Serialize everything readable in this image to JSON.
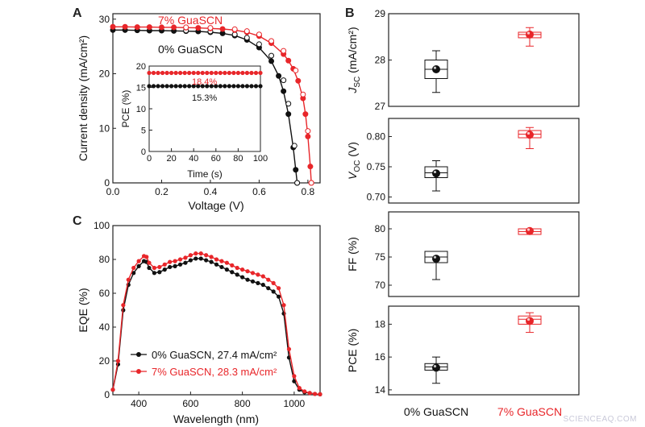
{
  "panel_labels": {
    "a": "A",
    "b": "B",
    "c": "C"
  },
  "watermark": "SCIENCEAQ.COM",
  "colors": {
    "control": "#111111",
    "gua": "#e8262a"
  },
  "chart_data": [
    {
      "id": "A",
      "type": "line",
      "xlabel": "Voltage (V)",
      "ylabel": "Current density (mA/cm²)",
      "xlim": [
        0,
        0.85
      ],
      "ylim": [
        0,
        31
      ],
      "xticks": [
        "0.0",
        "0.2",
        "0.4",
        "0.6",
        "0.8"
      ],
      "yticks": [
        "0",
        "10",
        "20",
        "30"
      ],
      "series": [
        {
          "name": "0% GuaSCN",
          "role": "control",
          "points": [
            [
              0,
              28
            ],
            [
              0.05,
              28
            ],
            [
              0.1,
              27.95
            ],
            [
              0.15,
              27.9
            ],
            [
              0.2,
              27.9
            ],
            [
              0.25,
              27.85
            ],
            [
              0.3,
              27.8
            ],
            [
              0.35,
              27.75
            ],
            [
              0.4,
              27.6
            ],
            [
              0.45,
              27.4
            ],
            [
              0.5,
              27
            ],
            [
              0.55,
              26.2
            ],
            [
              0.6,
              24.8
            ],
            [
              0.65,
              22.3
            ],
            [
              0.68,
              19.6
            ],
            [
              0.7,
              16.8
            ],
            [
              0.72,
              12.6
            ],
            [
              0.74,
              6.5
            ],
            [
              0.75,
              2.4
            ],
            [
              0.756,
              0
            ]
          ]
        },
        {
          "name": "0% GuaSCN (reverse)",
          "role": "control-open",
          "points": [
            [
              0.3,
              27.9
            ],
            [
              0.4,
              27.75
            ],
            [
              0.5,
              27.2
            ],
            [
              0.55,
              26.6
            ],
            [
              0.6,
              25.4
            ],
            [
              0.65,
              23.3
            ],
            [
              0.7,
              18.8
            ],
            [
              0.72,
              14.5
            ],
            [
              0.745,
              6.8
            ],
            [
              0.756,
              0
            ]
          ]
        },
        {
          "name": "7% GuaSCN",
          "role": "gua",
          "points": [
            [
              0,
              28.6
            ],
            [
              0.05,
              28.6
            ],
            [
              0.1,
              28.55
            ],
            [
              0.15,
              28.55
            ],
            [
              0.2,
              28.5
            ],
            [
              0.25,
              28.5
            ],
            [
              0.3,
              28.45
            ],
            [
              0.35,
              28.4
            ],
            [
              0.4,
              28.3
            ],
            [
              0.45,
              28.2
            ],
            [
              0.5,
              28
            ],
            [
              0.55,
              27.6
            ],
            [
              0.6,
              26.9
            ],
            [
              0.65,
              25.6
            ],
            [
              0.7,
              23.6
            ],
            [
              0.72,
              22.4
            ],
            [
              0.74,
              20.9
            ],
            [
              0.76,
              18.7
            ],
            [
              0.78,
              15.5
            ],
            [
              0.79,
              12.6
            ],
            [
              0.8,
              8.5
            ],
            [
              0.81,
              3
            ],
            [
              0.814,
              0
            ]
          ]
        },
        {
          "name": "7% GuaSCN (reverse)",
          "role": "gua-open",
          "points": [
            [
              0.3,
              28.5
            ],
            [
              0.4,
              28.4
            ],
            [
              0.5,
              28.15
            ],
            [
              0.55,
              27.8
            ],
            [
              0.6,
              27.2
            ],
            [
              0.65,
              26
            ],
            [
              0.7,
              24.2
            ],
            [
              0.75,
              20.6
            ],
            [
              0.78,
              16.2
            ],
            [
              0.8,
              9.5
            ],
            [
              0.814,
              0
            ]
          ]
        }
      ],
      "labels": {
        "gua": "7% GuaSCN",
        "control": "0% GuaSCN"
      }
    },
    {
      "id": "A-inset",
      "type": "scatter",
      "xlabel": "Time (s)",
      "ylabel": "PCE (%)",
      "xlim": [
        0,
        100
      ],
      "ylim": [
        0,
        20
      ],
      "xticks": [
        "0",
        "20",
        "40",
        "60",
        "80",
        "100"
      ],
      "yticks": [
        "0",
        "5",
        "10",
        "15",
        "20"
      ],
      "series": [
        {
          "name": "7% GuaSCN",
          "role": "gua",
          "value": 18.4
        },
        {
          "name": "0% GuaSCN",
          "role": "control",
          "value": 15.3
        }
      ],
      "annotations": [
        "18.4%",
        "15.3%"
      ]
    },
    {
      "id": "B",
      "type": "box",
      "categories": [
        "0% GuaSCN",
        "7% GuaSCN"
      ],
      "subplots": [
        {
          "ylabel_main": "J",
          "ylabel_sub": "SC",
          "ylabel_unit": " (mA/cm²)",
          "ylim": [
            27,
            29
          ],
          "yticks": [
            "27",
            "28",
            "29"
          ],
          "boxes": [
            {
              "min": 27.3,
              "q1": 27.6,
              "median": 27.8,
              "q3": 28.0,
              "max": 28.2,
              "mean": 27.8
            },
            {
              "min": 28.3,
              "q1": 28.48,
              "median": 28.55,
              "q3": 28.6,
              "max": 28.7,
              "mean": 28.55
            }
          ]
        },
        {
          "ylabel_main": "V",
          "ylabel_sub": "OC",
          "ylabel_unit": " (V)",
          "ylim": [
            0.69,
            0.83
          ],
          "yticks": [
            "0.70",
            "0.75",
            "0.80"
          ],
          "boxes": [
            {
              "min": 0.71,
              "q1": 0.732,
              "median": 0.74,
              "q3": 0.75,
              "max": 0.76,
              "mean": 0.739
            },
            {
              "min": 0.78,
              "q1": 0.798,
              "median": 0.804,
              "q3": 0.81,
              "max": 0.815,
              "mean": 0.803
            }
          ]
        },
        {
          "ylabel_main": "FF (%)",
          "ylabel_sub": "",
          "ylabel_unit": "",
          "ylim": [
            68,
            83
          ],
          "yticks": [
            "70",
            "75",
            "80"
          ],
          "boxes": [
            {
              "min": 71,
              "q1": 74,
              "median": 75,
              "q3": 76,
              "max": 76,
              "mean": 74.7
            },
            {
              "min": 79,
              "q1": 79,
              "median": 79.5,
              "q3": 80,
              "max": 80,
              "mean": 79.6
            }
          ]
        },
        {
          "ylabel_main": "PCE (%)",
          "ylabel_sub": "",
          "ylabel_unit": "",
          "ylim": [
            13.7,
            19.1
          ],
          "yticks": [
            "14",
            "16",
            "18"
          ],
          "boxes": [
            {
              "min": 14.4,
              "q1": 15.2,
              "median": 15.4,
              "q3": 15.6,
              "max": 16.0,
              "mean": 15.35
            },
            {
              "min": 17.5,
              "q1": 18.0,
              "median": 18.3,
              "q3": 18.5,
              "max": 18.7,
              "mean": 18.2
            }
          ]
        }
      ]
    },
    {
      "id": "C",
      "type": "line",
      "xlabel": "Wavelength (nm)",
      "ylabel": "EQE (%)",
      "xlim": [
        300,
        1100
      ],
      "ylim": [
        0,
        100
      ],
      "xticks": [
        "400",
        "600",
        "800",
        "1000"
      ],
      "yticks": [
        "0",
        "20",
        "40",
        "60",
        "80",
        "100"
      ],
      "series": [
        {
          "name": "0% GuaSCN, 27.4 mA/cm²",
          "role": "control",
          "points": [
            [
              300,
              3
            ],
            [
              320,
              18
            ],
            [
              340,
              50
            ],
            [
              360,
              65
            ],
            [
              380,
              72
            ],
            [
              400,
              76
            ],
            [
              420,
              79
            ],
            [
              430,
              78.5
            ],
            [
              440,
              75
            ],
            [
              460,
              72
            ],
            [
              480,
              72.5
            ],
            [
              500,
              74
            ],
            [
              520,
              75.5
            ],
            [
              540,
              76
            ],
            [
              560,
              77
            ],
            [
              580,
              78
            ],
            [
              600,
              79.5
            ],
            [
              620,
              80.5
            ],
            [
              640,
              80.5
            ],
            [
              660,
              79.5
            ],
            [
              680,
              78.5
            ],
            [
              700,
              77
            ],
            [
              720,
              75.5
            ],
            [
              740,
              74
            ],
            [
              760,
              72.5
            ],
            [
              780,
              71
            ],
            [
              800,
              69.5
            ],
            [
              820,
              68
            ],
            [
              840,
              67
            ],
            [
              860,
              66
            ],
            [
              880,
              65
            ],
            [
              900,
              63
            ],
            [
              920,
              61
            ],
            [
              940,
              58
            ],
            [
              960,
              48
            ],
            [
              980,
              22
            ],
            [
              1000,
              8
            ],
            [
              1020,
              3
            ],
            [
              1040,
              1.5
            ],
            [
              1060,
              1
            ],
            [
              1080,
              0.5
            ],
            [
              1100,
              0.3
            ]
          ]
        },
        {
          "name": "7% GuaSCN, 28.3 mA/cm²",
          "role": "gua",
          "points": [
            [
              300,
              3
            ],
            [
              320,
              20
            ],
            [
              340,
              53
            ],
            [
              360,
              68
            ],
            [
              380,
              75
            ],
            [
              400,
              79
            ],
            [
              420,
              82
            ],
            [
              430,
              81.5
            ],
            [
              440,
              78
            ],
            [
              460,
              75
            ],
            [
              480,
              75.5
            ],
            [
              500,
              77
            ],
            [
              520,
              78.5
            ],
            [
              540,
              79
            ],
            [
              560,
              80
            ],
            [
              580,
              81
            ],
            [
              600,
              82.5
            ],
            [
              620,
              83.5
            ],
            [
              640,
              83.5
            ],
            [
              660,
              82.5
            ],
            [
              680,
              81.5
            ],
            [
              700,
              80
            ],
            [
              720,
              79
            ],
            [
              740,
              78
            ],
            [
              760,
              76.5
            ],
            [
              780,
              75
            ],
            [
              800,
              74
            ],
            [
              820,
              73
            ],
            [
              840,
              72
            ],
            [
              860,
              71
            ],
            [
              880,
              70
            ],
            [
              900,
              68
            ],
            [
              920,
              66
            ],
            [
              940,
              63
            ],
            [
              960,
              53
            ],
            [
              980,
              27
            ],
            [
              1000,
              11
            ],
            [
              1020,
              4
            ],
            [
              1040,
              2
            ],
            [
              1060,
              1
            ],
            [
              1080,
              0.5
            ],
            [
              1100,
              0.3
            ]
          ]
        }
      ]
    }
  ]
}
